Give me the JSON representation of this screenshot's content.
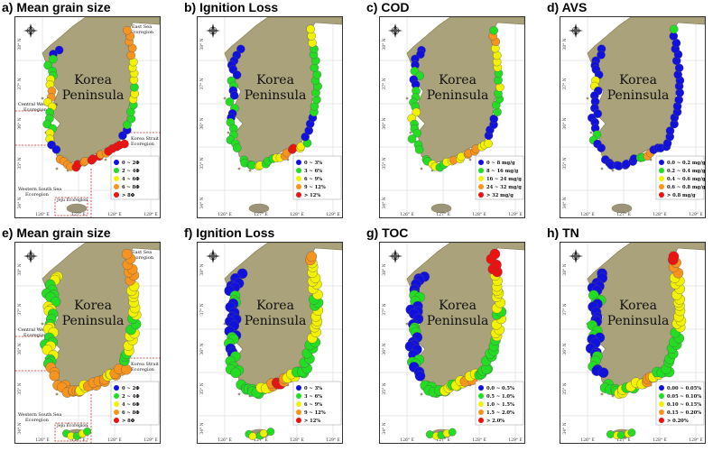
{
  "peninsula_label": [
    "Korea",
    "Peninsula"
  ],
  "eco_labels": {
    "east": [
      "East Sea",
      "Ecoregion"
    ],
    "central": [
      "Central West Sea",
      "Ecoregion"
    ],
    "strait": [
      "Korea Strait",
      "Ecoregion"
    ],
    "western_south": [
      "Western South Sea",
      "Ecoregion"
    ],
    "jeju": "Jeju Ecoregion"
  },
  "lat_ticks": [
    "38° N",
    "37° N",
    "36° N",
    "35° N",
    "34° N"
  ],
  "lon_ticks": [
    "126° E",
    "127° E",
    "128° E",
    "129° E"
  ],
  "colors": {
    "land": "#a9a27a",
    "land_edge": "#8b8660",
    "island": "#9b9478",
    "c0": "#1111dd",
    "c1": "#22dd22",
    "c2": "#f2f200",
    "c3": "#f7941d",
    "c4": "#ee1111"
  },
  "panels": [
    {
      "id": "a",
      "title": "a) Mean grain size",
      "variant": "top",
      "eco": true,
      "legend": [
        "0 ~ 2Φ",
        "2 ~ 4Φ",
        "4 ~ 6Φ",
        "6 ~ 8Φ",
        "> 8Φ"
      ],
      "dist": {
        "w": [
          0,
          1,
          1,
          2,
          3,
          2,
          1,
          1,
          2,
          0
        ],
        "s": [
          3,
          3,
          4,
          3,
          4,
          4,
          3,
          4,
          4,
          4
        ],
        "e": [
          0,
          1,
          1,
          2,
          1,
          2,
          2,
          3,
          3,
          3
        ]
      }
    },
    {
      "id": "b",
      "title": "b) Ignition Loss",
      "variant": "top",
      "eco": false,
      "legend": [
        "0 ~ 3%",
        "3 ~ 6%",
        "6 ~ 9%",
        "9 ~ 12%",
        "> 12%"
      ],
      "dist": {
        "w": [
          0,
          0,
          0,
          1,
          0,
          1,
          0,
          1,
          1,
          1
        ],
        "s": [
          1,
          1,
          2,
          1,
          1,
          2,
          3,
          4,
          2,
          1
        ],
        "e": [
          0,
          0,
          1,
          1,
          1,
          1,
          1,
          1,
          2,
          2
        ]
      }
    },
    {
      "id": "c",
      "title": "c) COD",
      "variant": "top",
      "eco": false,
      "legend": [
        "0 ~ 8 mg/g",
        "8 ~ 16 mg/g",
        "16 ~ 24 mg/g",
        "24 ~ 32 mg/g",
        "> 32 mg/g"
      ],
      "dist": {
        "w": [
          0,
          0,
          1,
          0,
          1,
          1,
          2,
          1,
          1,
          1
        ],
        "s": [
          1,
          2,
          1,
          2,
          3,
          2,
          3,
          3,
          2,
          2
        ],
        "e": [
          0,
          0,
          1,
          1,
          2,
          1,
          2,
          2,
          3,
          1
        ]
      }
    },
    {
      "id": "d",
      "title": "d) AVS",
      "variant": "top",
      "eco": false,
      "legend": [
        "0.0 ~ 0.2 mg/g",
        "0.2 ~ 0.4 mg/g",
        "0.4 ~ 0.6 mg/g",
        "0.6 ~ 0.8 mg/g",
        "> 0.8 mg/g"
      ],
      "dist": {
        "w": [
          0,
          0,
          0,
          2,
          0,
          0,
          0,
          0,
          1,
          0
        ],
        "s": [
          0,
          0,
          0,
          0,
          0,
          1,
          3,
          0,
          0,
          0
        ],
        "e": [
          0,
          0,
          0,
          0,
          0,
          0,
          0,
          0,
          0,
          1
        ]
      }
    },
    {
      "id": "e",
      "title": "e) Mean grain size",
      "variant": "bottom",
      "eco": true,
      "legend": [
        "0 ~ 2Φ",
        "2 ~ 4Φ",
        "4 ~ 6Φ",
        "6 ~ 8Φ",
        "> 8Φ"
      ],
      "dist": {
        "w": [
          2,
          1,
          1,
          2,
          1,
          2,
          1,
          2,
          1,
          3
        ],
        "s": [
          3,
          3,
          3,
          2,
          3,
          3,
          3,
          2,
          3,
          3
        ],
        "e": [
          1,
          2,
          2,
          1,
          2,
          2,
          2,
          3,
          3,
          3
        ]
      }
    },
    {
      "id": "f",
      "title": "f) Ignition Loss",
      "variant": "bottom",
      "eco": false,
      "legend": [
        "0 ~ 3%",
        "3 ~ 6%",
        "6 ~ 9%",
        "9 ~ 12%",
        "> 12%"
      ],
      "dist": {
        "w": [
          0,
          0,
          1,
          0,
          0,
          0,
          1,
          0,
          1,
          1
        ],
        "s": [
          1,
          1,
          1,
          2,
          3,
          4,
          3,
          2,
          1,
          1
        ],
        "e": [
          1,
          1,
          2,
          2,
          2,
          1,
          2,
          2,
          2,
          3
        ]
      }
    },
    {
      "id": "g",
      "title": "g) TOC",
      "variant": "bottom",
      "eco": false,
      "legend": [
        "0.0 ~ 0.5%",
        "0.5 ~ 1.0%",
        "1.0 ~ 1.5%",
        "1.5 ~ 2.0%",
        "> 2.0%"
      ],
      "dist": {
        "w": [
          0,
          0,
          1,
          0,
          0,
          1,
          0,
          0,
          1,
          0
        ],
        "s": [
          1,
          1,
          1,
          2,
          1,
          2,
          3,
          2,
          1,
          1
        ],
        "e": [
          1,
          1,
          2,
          2,
          1,
          2,
          2,
          2,
          4,
          4
        ]
      }
    },
    {
      "id": "h",
      "title": "h) TN",
      "variant": "bottom",
      "eco": false,
      "legend": [
        "0.00 ~ 0.05%",
        "0.05 ~ 0.10%",
        "0.10 ~ 0.15%",
        "0.15 ~ 0.20%",
        "> 0.20%"
      ],
      "dist": {
        "w": [
          0,
          0,
          1,
          0,
          0,
          1,
          0,
          0,
          1,
          0
        ],
        "s": [
          1,
          1,
          2,
          1,
          2,
          2,
          3,
          2,
          1,
          1
        ],
        "e": [
          1,
          1,
          1,
          2,
          2,
          2,
          2,
          2,
          3,
          4
        ]
      }
    }
  ]
}
